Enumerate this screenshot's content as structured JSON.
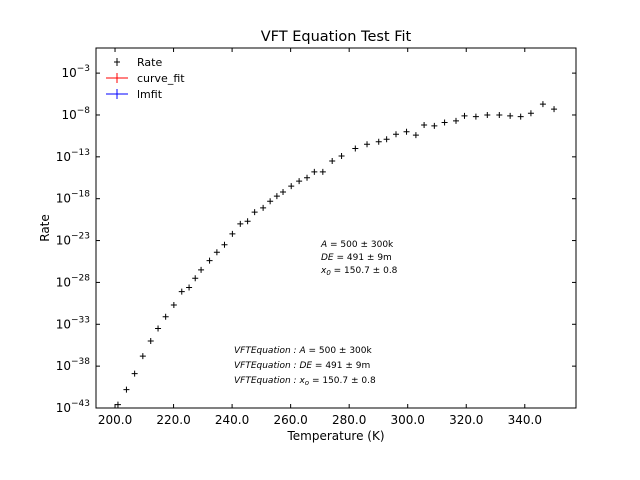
{
  "chart_data": {
    "type": "scatter",
    "title": "VFT Equation Test Fit",
    "xlabel": "Temperature (K)",
    "ylabel": "Rate",
    "xlim": [
      193.5,
      357.5
    ],
    "ylim_log10": [
      -43,
      0
    ],
    "y_scale": "log",
    "grid": false,
    "legend_position": "top-left",
    "x_ticks": [
      200,
      220,
      240,
      260,
      280,
      300,
      320,
      340
    ],
    "x_tick_labels": [
      "200.0",
      "220.0",
      "240.0",
      "260.0",
      "280.0",
      "300.0",
      "320.0",
      "340.0"
    ],
    "y_ticks_log10": [
      -43,
      -38,
      -33,
      -28,
      -23,
      -18,
      -13,
      -8,
      -3
    ],
    "y_tick_labels": [
      {
        "base": "10",
        "exp": "−43"
      },
      {
        "base": "10",
        "exp": "−38"
      },
      {
        "base": "10",
        "exp": "−33"
      },
      {
        "base": "10",
        "exp": "−28"
      },
      {
        "base": "10",
        "exp": "−23"
      },
      {
        "base": "10",
        "exp": "−18"
      },
      {
        "base": "10",
        "exp": "−13"
      },
      {
        "base": "10",
        "exp": "−8"
      },
      {
        "base": "10",
        "exp": "−3"
      }
    ],
    "series": [
      {
        "name": "Rate",
        "kind": "points",
        "color": "#000000",
        "x": [
          201,
          203.9,
          206.7,
          209.5,
          212.2,
          214.7,
          217.3,
          220.1,
          222.8,
          225.3,
          227.4,
          229.4,
          232.3,
          234.8,
          237.4,
          240.1,
          242.8,
          245.3,
          247.7,
          250.6,
          253.0,
          255.3,
          257.4,
          260.2,
          262.9,
          265.6,
          268.1,
          271.0,
          274.2,
          277.4,
          282.1,
          286.1,
          290.1,
          292.8,
          296.0,
          299.6,
          302.8,
          305.6,
          309.1,
          312.6,
          316.5,
          319.4,
          323.3,
          327.2,
          331.3,
          335.0,
          338.6,
          342.1,
          346.2,
          350.0
        ],
        "y_log10": [
          -42.6,
          -40.8,
          -38.9,
          -36.8,
          -35.0,
          -33.5,
          -32.1,
          -30.7,
          -29.1,
          -28.6,
          -27.5,
          -26.5,
          -25.4,
          -24.4,
          -23.5,
          -22.2,
          -21.0,
          -20.7,
          -19.6,
          -19.1,
          -18.3,
          -17.7,
          -17.2,
          -16.5,
          -15.9,
          -15.5,
          -14.8,
          -14.8,
          -13.5,
          -12.9,
          -12.0,
          -11.5,
          -11.2,
          -10.9,
          -10.3,
          -10.0,
          -10.4,
          -9.2,
          -9.3,
          -8.9,
          -8.7,
          -8.1,
          -8.2,
          -8.0,
          -8.0,
          -8.1,
          -8.2,
          -7.8,
          -6.7,
          -7.3
        ]
      },
      {
        "name": "curve_fit",
        "kind": "fit",
        "color": "#ff0000",
        "A": 500000,
        "DE": 491,
        "x0": 150.7,
        "x_range": [
          201,
          350
        ]
      },
      {
        "name": "lmfit",
        "kind": "fit",
        "color": "#0000ff",
        "A": 500000,
        "DE": 491,
        "x0": 150.7,
        "x_range": [
          201,
          350
        ]
      }
    ],
    "legend": [
      {
        "label": "Rate",
        "color": "#000000"
      },
      {
        "label": "curve_fit",
        "color": "#ff0000"
      },
      {
        "label": "lmfit",
        "color": "#0000ff"
      }
    ],
    "annotations": {
      "block1": [
        {
          "base": "A",
          "rest": " = 500 ± 300k"
        },
        {
          "base": "DE",
          "rest": " = 491 ± 9m"
        },
        {
          "base": "x",
          "sub": "0",
          "rest": " = 150.7 ± 0.8"
        }
      ],
      "block2": [
        {
          "base": "VFTEquation : A",
          "rest": " = 500 ± 300k"
        },
        {
          "base": "VFTEquation : DE",
          "rest": " = 491 ± 9m"
        },
        {
          "base": "VFTEquation : x",
          "sub": "o",
          "rest": " = 150.7 ± 0.8"
        }
      ]
    }
  }
}
